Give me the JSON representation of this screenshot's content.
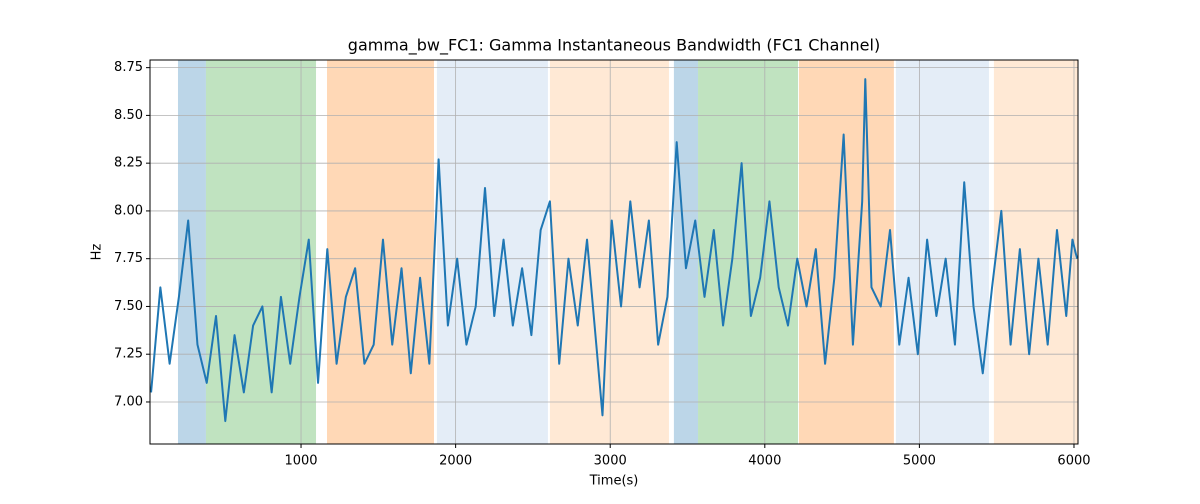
{
  "chart_data": {
    "type": "line",
    "title": "gamma_bw_FC1: Gamma Instantaneous Bandwidth (FC1 Channel)",
    "x_label": "Time(s)",
    "y_label": "Hz",
    "xlim": [
      23,
      6026
    ],
    "ylim": [
      6.78,
      8.79
    ],
    "xticks": [
      1000,
      2000,
      3000,
      4000,
      5000,
      6000
    ],
    "yticks": [
      {
        "value": 7.0,
        "label": "7.00"
      },
      {
        "value": 7.25,
        "label": "7.25"
      },
      {
        "value": 7.5,
        "label": "7.50"
      },
      {
        "value": 7.75,
        "label": "7.75"
      },
      {
        "value": 8.0,
        "label": "8.00"
      },
      {
        "value": 8.25,
        "label": "8.25"
      },
      {
        "value": 8.5,
        "label": "8.50"
      },
      {
        "value": 8.75,
        "label": "8.75"
      }
    ],
    "grid": true,
    "spans": [
      {
        "start": 204,
        "end": 385,
        "color": "#bcd6e8"
      },
      {
        "start": 385,
        "end": 1097,
        "color": "#c0e3c0"
      },
      {
        "start": 1168,
        "end": 1860,
        "color": "#ffd8b6"
      },
      {
        "start": 1879,
        "end": 2597,
        "color": "#e4edf7"
      },
      {
        "start": 2610,
        "end": 3380,
        "color": "#ffe9d5"
      },
      {
        "start": 3412,
        "end": 3568,
        "color": "#bcd6e8"
      },
      {
        "start": 3568,
        "end": 4215,
        "color": "#c0e3c0"
      },
      {
        "start": 4221,
        "end": 4835,
        "color": "#ffd8b6"
      },
      {
        "start": 4848,
        "end": 5450,
        "color": "#e4edf7"
      },
      {
        "start": 5482,
        "end": 6026,
        "color": "#ffe9d5"
      }
    ],
    "x": [
      30,
      90,
      150,
      210,
      270,
      330,
      390,
      450,
      510,
      570,
      630,
      690,
      750,
      810,
      870,
      930,
      990,
      1050,
      1110,
      1170,
      1230,
      1290,
      1350,
      1410,
      1470,
      1530,
      1590,
      1650,
      1710,
      1770,
      1830,
      1890,
      1950,
      2010,
      2070,
      2130,
      2190,
      2250,
      2310,
      2370,
      2430,
      2490,
      2550,
      2610,
      2670,
      2730,
      2790,
      2850,
      2910,
      2950,
      3010,
      3070,
      3130,
      3190,
      3250,
      3310,
      3370,
      3430,
      3490,
      3550,
      3610,
      3670,
      3730,
      3790,
      3850,
      3910,
      3970,
      4030,
      4090,
      4150,
      4210,
      4270,
      4330,
      4390,
      4450,
      4510,
      4570,
      4630,
      4650,
      4690,
      4750,
      4810,
      4870,
      4930,
      4990,
      5050,
      5110,
      5170,
      5230,
      5290,
      5350,
      5410,
      5470,
      5530,
      5590,
      5650,
      5710,
      5770,
      5830,
      5890,
      5950,
      5990,
      6020
    ],
    "series": [
      {
        "name": "gamma_bw_FC1",
        "color": "#1f77b4",
        "values": [
          7.05,
          7.6,
          7.2,
          7.55,
          7.95,
          7.3,
          7.1,
          7.45,
          6.9,
          7.35,
          7.05,
          7.4,
          7.5,
          7.05,
          7.55,
          7.2,
          7.55,
          7.85,
          7.1,
          7.8,
          7.2,
          7.55,
          7.7,
          7.2,
          7.3,
          7.85,
          7.3,
          7.7,
          7.15,
          7.65,
          7.2,
          8.27,
          7.4,
          7.75,
          7.3,
          7.5,
          8.12,
          7.45,
          7.85,
          7.4,
          7.7,
          7.35,
          7.9,
          8.05,
          7.2,
          7.75,
          7.4,
          7.85,
          7.3,
          6.93,
          7.95,
          7.5,
          8.05,
          7.6,
          7.95,
          7.3,
          7.55,
          8.36,
          7.7,
          7.95,
          7.55,
          7.9,
          7.4,
          7.75,
          8.25,
          7.45,
          7.65,
          8.05,
          7.6,
          7.4,
          7.75,
          7.5,
          7.8,
          7.2,
          7.65,
          8.4,
          7.3,
          8.05,
          8.69,
          7.6,
          7.5,
          7.9,
          7.3,
          7.65,
          7.25,
          7.85,
          7.45,
          7.75,
          7.3,
          8.15,
          7.5,
          7.15,
          7.6,
          8.0,
          7.3,
          7.8,
          7.25,
          7.75,
          7.3,
          7.9,
          7.45,
          7.85,
          7.75
        ]
      }
    ]
  }
}
